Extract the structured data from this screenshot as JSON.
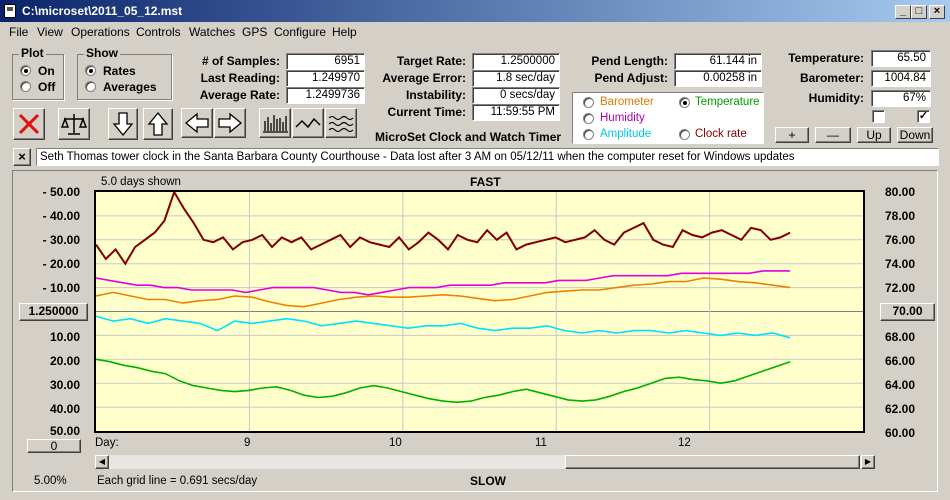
{
  "window": {
    "title": "C:\\microset\\2011_05_12.mst",
    "controls": {
      "minimize": "_",
      "maximize": "□",
      "close": "×"
    }
  },
  "menu": [
    "File",
    "View",
    "Operations",
    "Controls",
    "Watches",
    "GPS",
    "Configure",
    "Help"
  ],
  "plot_group": {
    "title": "Plot",
    "options": [
      {
        "label": "On",
        "selected": true
      },
      {
        "label": "Off",
        "selected": false
      }
    ]
  },
  "show_group": {
    "title": "Show",
    "options": [
      {
        "label": "Rates",
        "selected": true
      },
      {
        "label": "Averages",
        "selected": false
      }
    ]
  },
  "stats_left": {
    "samples_label": "# of Samples:",
    "samples": "6951",
    "last_reading_label": "Last Reading:",
    "last_reading": "1.249970",
    "average_rate_label": "Average Rate:",
    "average_rate": "1.2499736"
  },
  "stats_mid": {
    "target_rate_label": "Target Rate:",
    "target_rate": "1.2500000",
    "average_error_label": "Average Error:",
    "average_error": "1.8 sec/day",
    "instability_label": "Instability:",
    "instability": "0 secs/day",
    "current_time_label": "Current Time:",
    "current_time": "11:59:55 PM"
  },
  "app_subtitle": "MicroSet Clock and Watch Timer",
  "pendulum": {
    "length_label": "Pend Length:",
    "length": "61.144 in",
    "adjust_label": "Pend Adjust:",
    "adjust": "0.00258 in"
  },
  "sensors": [
    {
      "label": "Barometer",
      "color": "#e07800",
      "selected": false
    },
    {
      "label": "Temperature",
      "color": "#00a000",
      "selected": true
    },
    {
      "label": "Humidity",
      "color": "#b000b0",
      "selected": false
    },
    {
      "label": "Amplitude",
      "color": "#00c8e0",
      "selected": false
    },
    {
      "label": "Clock rate",
      "color": "#800000",
      "selected": false
    }
  ],
  "environment": {
    "temperature_label": "Temperature:",
    "temperature": "65.50",
    "barometer_label": "Barometer:",
    "barometer": "1004.84",
    "humidity_label": "Humidity:",
    "humidity": "67%",
    "check1": "",
    "check2": "✓"
  },
  "scale_buttons": {
    "plus": "+",
    "minus": "—",
    "up": "Up",
    "down": "Down"
  },
  "toolbar_icons": [
    "stop-icon",
    "balance-scale-icon",
    "arrow-down-icon",
    "arrow-up-icon",
    "arrow-left-icon",
    "arrow-right-icon",
    "bar-graph-icon",
    "line-graph-icon",
    "wave-graph-icon"
  ],
  "note": {
    "close": "×",
    "text": "Seth Thomas tower clock in the Santa Barbara County Courthouse - Data lost after 3 AM on 05/12/11 when the computer reset for Windows updates"
  },
  "graph": {
    "days_shown": "5.0 days shown",
    "top_label": "FAST",
    "bottom_label": "SLOW",
    "center_value_left": "1.250000",
    "center_value_right": "70.00",
    "offset_box": "0",
    "day_label": "Day:",
    "zoom": "5.00%",
    "grid_note": "Each grid line = 0.691 secs/day",
    "left_ticks": [
      "-  50.00",
      "-  40.00",
      "-  30.00",
      "-  20.00",
      "-  10.00",
      "10.00",
      "20.00",
      "30.00",
      "40.00",
      "50.00"
    ],
    "right_ticks": [
      "80.00",
      "78.00",
      "76.00",
      "74.00",
      "72.00",
      "70.00",
      "68.00",
      "66.00",
      "64.00",
      "62.00",
      "60.00"
    ],
    "day_ticks": [
      "9",
      "10",
      "11",
      "12"
    ]
  },
  "chart_data": {
    "type": "line",
    "x_range_days": [
      8.0,
      13.0
    ],
    "series": [
      {
        "name": "Clock rate",
        "color": "#800000",
        "values": [
          28,
          22,
          26,
          20,
          27,
          30,
          33,
          38,
          50,
          43,
          37,
          30,
          29,
          31,
          26,
          29,
          30,
          32,
          27,
          31,
          29,
          31,
          26,
          28,
          30,
          32,
          27,
          31,
          29,
          28,
          27,
          31,
          26,
          29,
          33,
          30,
          26,
          32,
          30,
          29,
          34,
          30,
          33,
          26,
          28,
          29,
          30,
          31,
          29,
          30,
          31,
          34,
          30,
          28,
          33,
          35,
          37,
          30,
          28,
          27,
          34,
          32,
          31,
          33,
          34,
          32,
          30,
          35,
          34,
          30,
          31,
          33
        ]
      },
      {
        "name": "Humidity",
        "color": "#e000e0",
        "values": [
          14,
          13,
          12,
          11,
          11,
          10,
          10,
          9,
          9,
          9,
          9,
          8,
          9,
          10,
          10,
          10,
          10,
          9,
          8,
          8,
          7,
          8,
          9,
          10,
          10,
          10,
          11,
          11,
          11,
          11,
          12,
          12,
          12,
          12,
          13,
          13,
          13,
          14,
          15,
          15,
          15,
          15,
          15,
          16,
          16,
          16,
          16,
          16,
          16,
          17,
          17,
          17
        ]
      },
      {
        "name": "Barometer",
        "color": "#f08000",
        "values": [
          71.3,
          71.6,
          71.3,
          71.0,
          71.0,
          70.7,
          70.9,
          71.0,
          71.3,
          71.2,
          70.8,
          70.5,
          70.4,
          70.7,
          71.0,
          71.2,
          71.3,
          71.2,
          71.2,
          71.3,
          71.4,
          71.3,
          71.1,
          70.9,
          71.0,
          71.3,
          71.6,
          71.7,
          71.8,
          71.8,
          72.0,
          72.2,
          72.3,
          72.5,
          72.5,
          72.8,
          72.7,
          72.5,
          72.4,
          72.2,
          72.0
        ]
      },
      {
        "name": "Amplitude",
        "color": "#00e0ff",
        "values": [
          -2,
          -4,
          -3,
          -5,
          -3,
          -4,
          -5,
          -8,
          -4,
          -5,
          -4,
          -3,
          -4,
          -6,
          -5,
          -4,
          -5,
          -6,
          -7,
          -6,
          -6,
          -5,
          -7,
          -8,
          -7,
          -7,
          -6,
          -8,
          -9,
          -8,
          -9,
          -8,
          -8,
          -9,
          -8,
          -9,
          -10,
          -9,
          -10,
          -9,
          -11
        ]
      },
      {
        "name": "Temperature",
        "color": "#00b000",
        "values": [
          66.0,
          65.8,
          65.5,
          65.3,
          65.0,
          64.8,
          64.2,
          63.8,
          63.6,
          63.4,
          63.3,
          63.4,
          63.6,
          63.7,
          63.4,
          63.0,
          62.8,
          62.9,
          63.2,
          63.6,
          63.8,
          63.6,
          63.3,
          63.0,
          62.7,
          62.5,
          62.4,
          62.5,
          62.8,
          63.0,
          63.3,
          63.5,
          63.2,
          62.9,
          62.6,
          62.5,
          62.6,
          62.9,
          63.3,
          63.6,
          64.0,
          64.4,
          64.5,
          64.3,
          64.2,
          64.0,
          64.2,
          64.6,
          65.0,
          65.4,
          65.8
        ]
      }
    ]
  }
}
